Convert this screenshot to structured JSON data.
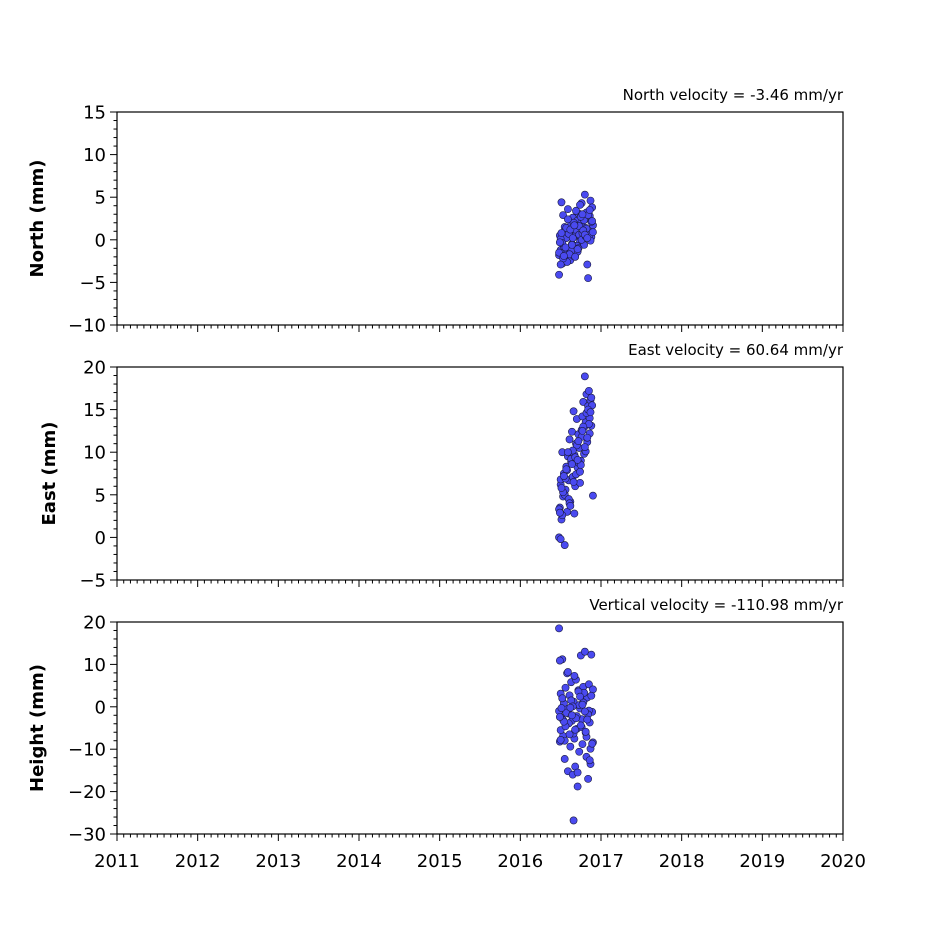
{
  "chart_data": [
    {
      "type": "scatter",
      "title": "North velocity = -3.46 mm/yr",
      "xlabel": "",
      "ylabel": "North (mm)",
      "xlim": [
        2011,
        2020
      ],
      "ylim": [
        -10,
        15
      ],
      "yticks": [
        "15",
        "10",
        "5",
        "0",
        "−10"
      ],
      "yticks_values": [
        15,
        10,
        5,
        0,
        -10
      ],
      "yticks_full": [
        "−10",
        "−5",
        "0",
        "5",
        "10",
        "15"
      ],
      "grid": false,
      "marker_color": "#4a4af0",
      "points": {
        "x": [
          2016.48,
          2016.49,
          2016.5,
          2016.51,
          2016.52,
          2016.53,
          2016.54,
          2016.55,
          2016.56,
          2016.57,
          2016.58,
          2016.59,
          2016.6,
          2016.61,
          2016.62,
          2016.63,
          2016.64,
          2016.65,
          2016.66,
          2016.67,
          2016.68,
          2016.69,
          2016.7,
          2016.71,
          2016.72,
          2016.73,
          2016.74,
          2016.75,
          2016.76,
          2016.77,
          2016.78,
          2016.79,
          2016.8,
          2016.81,
          2016.82,
          2016.83,
          2016.84,
          2016.85,
          2016.86,
          2016.87,
          2016.88,
          2016.89,
          2016.9,
          2016.48,
          2016.5,
          2016.52,
          2016.55,
          2016.58,
          2016.6,
          2016.63,
          2016.66,
          2016.7,
          2016.73,
          2016.76,
          2016.79,
          2016.82,
          2016.85,
          2016.88,
          2016.49,
          2016.53,
          2016.57,
          2016.61,
          2016.65,
          2016.69,
          2016.72,
          2016.75,
          2016.78,
          2016.81,
          2016.84,
          2016.87,
          2016.9,
          2016.5,
          2016.56,
          2016.62,
          2016.68,
          2016.74,
          2016.8,
          2016.86,
          2016.48,
          2016.51,
          2016.54,
          2016.59,
          2016.64,
          2016.67,
          2016.71,
          2016.77,
          2016.83,
          2016.89
        ],
        "y": [
          -4.1,
          0.5,
          -1.2,
          4.4,
          -2.8,
          2.9,
          -0.8,
          1.5,
          -2.1,
          0.2,
          -1.6,
          3.6,
          -1.1,
          0.9,
          -2.4,
          1.8,
          -0.5,
          2.6,
          -1.9,
          0.4,
          1.2,
          -0.9,
          2.2,
          -1.4,
          3.1,
          0.6,
          -0.2,
          1.9,
          4.3,
          0.8,
          2.5,
          -0.6,
          5.3,
          1.4,
          3.2,
          -2.9,
          -4.5,
          1.1,
          2.8,
          4.6,
          0.3,
          3.8,
          1.7,
          -1.8,
          0.1,
          -0.4,
          1.0,
          -2.6,
          0.7,
          -1.3,
          2.0,
          -0.7,
          1.6,
          0.0,
          2.3,
          1.3,
          0.5,
          2.1,
          -0.3,
          -2.2,
          1.4,
          -1.7,
          0.2,
          3.4,
          -1.0,
          2.7,
          1.1,
          0.4,
          2.9,
          -0.1,
          0.9,
          -2.9,
          -0.9,
          1.2,
          -2.0,
          4.1,
          0.6,
          3.5,
          -1.5,
          0.8,
          -1.9,
          2.4,
          -0.6,
          1.7,
          -1.1,
          3.0,
          0.2,
          2.2
        ]
      }
    },
    {
      "type": "scatter",
      "title": "East velocity = 60.64 mm/yr",
      "xlabel": "",
      "ylabel": "East (mm)",
      "xlim": [
        2011,
        2020
      ],
      "ylim": [
        -5,
        20
      ],
      "yticks_full": [
        "−5",
        "0",
        "5",
        "10",
        "15",
        "20"
      ],
      "yticks_values": [
        -5,
        0,
        5,
        10,
        15,
        20
      ],
      "grid": false,
      "marker_color": "#4a4af0",
      "points": {
        "x": [
          2016.48,
          2016.49,
          2016.5,
          2016.51,
          2016.52,
          2016.53,
          2016.54,
          2016.55,
          2016.56,
          2016.57,
          2016.58,
          2016.59,
          2016.6,
          2016.61,
          2016.62,
          2016.63,
          2016.64,
          2016.65,
          2016.66,
          2016.67,
          2016.68,
          2016.69,
          2016.7,
          2016.71,
          2016.72,
          2016.73,
          2016.74,
          2016.75,
          2016.76,
          2016.77,
          2016.78,
          2016.79,
          2016.8,
          2016.81,
          2016.82,
          2016.83,
          2016.84,
          2016.85,
          2016.86,
          2016.87,
          2016.88,
          2016.89,
          2016.9,
          2016.48,
          2016.5,
          2016.52,
          2016.55,
          2016.58,
          2016.6,
          2016.63,
          2016.66,
          2016.7,
          2016.73,
          2016.76,
          2016.79,
          2016.82,
          2016.85,
          2016.88,
          2016.49,
          2016.53,
          2016.57,
          2016.61,
          2016.65,
          2016.69,
          2016.72,
          2016.75,
          2016.78,
          2016.81,
          2016.84,
          2016.87,
          2016.5,
          2016.56,
          2016.62,
          2016.68,
          2016.74,
          2016.8,
          2016.86,
          2016.51,
          2016.54,
          2016.59,
          2016.64,
          2016.67,
          2016.71,
          2016.77,
          2016.83
        ],
        "y": [
          0.0,
          3.5,
          6.2,
          2.1,
          10.0,
          4.8,
          7.5,
          -0.9,
          5.6,
          8.3,
          3.0,
          9.5,
          6.7,
          11.5,
          4.2,
          8.9,
          12.4,
          7.1,
          14.8,
          9.7,
          6.0,
          11.0,
          13.9,
          8.2,
          12.1,
          10.5,
          6.4,
          9.0,
          11.8,
          14.2,
          15.9,
          12.9,
          18.9,
          13.5,
          16.8,
          11.2,
          15.4,
          17.2,
          14.0,
          16.1,
          13.1,
          15.5,
          4.9,
          3.3,
          6.8,
          2.6,
          5.0,
          7.9,
          4.5,
          9.2,
          6.5,
          10.8,
          8.7,
          12.6,
          9.8,
          14.6,
          13.3,
          16.4,
          2.9,
          5.3,
          8.0,
          4.0,
          10.2,
          7.4,
          11.3,
          8.5,
          13.0,
          10.1,
          15.0,
          14.7,
          -0.2,
          6.9,
          3.7,
          9.4,
          7.7,
          10.6,
          12.2,
          5.8,
          7.2,
          10.0,
          8.6,
          2.8,
          9.1,
          12.5,
          11.7
        ]
      }
    },
    {
      "type": "scatter",
      "title": "Vertical velocity = -110.98 mm/yr",
      "xlabel": "",
      "ylabel": "Height (mm)",
      "xlim": [
        2011,
        2020
      ],
      "ylim": [
        -30,
        20
      ],
      "xticks_full": [
        "2011",
        "2012",
        "2013",
        "2014",
        "2015",
        "2016",
        "2017",
        "2018",
        "2019",
        "2020"
      ],
      "yticks_full": [
        "−30",
        "−20",
        "−10",
        "0",
        "10",
        "20"
      ],
      "yticks_values": [
        -30,
        -20,
        -10,
        0,
        10,
        20
      ],
      "grid": false,
      "marker_color": "#4a4af0",
      "points": {
        "x": [
          2016.48,
          2016.49,
          2016.5,
          2016.51,
          2016.52,
          2016.53,
          2016.54,
          2016.55,
          2016.56,
          2016.57,
          2016.58,
          2016.59,
          2016.6,
          2016.61,
          2016.62,
          2016.63,
          2016.64,
          2016.65,
          2016.66,
          2016.67,
          2016.68,
          2016.69,
          2016.7,
          2016.71,
          2016.72,
          2016.73,
          2016.74,
          2016.75,
          2016.76,
          2016.77,
          2016.78,
          2016.79,
          2016.8,
          2016.81,
          2016.82,
          2016.83,
          2016.84,
          2016.85,
          2016.86,
          2016.87,
          2016.88,
          2016.89,
          2016.9,
          2016.48,
          2016.5,
          2016.52,
          2016.55,
          2016.58,
          2016.6,
          2016.63,
          2016.66,
          2016.7,
          2016.73,
          2016.76,
          2016.79,
          2016.82,
          2016.85,
          2016.88,
          2016.49,
          2016.53,
          2016.57,
          2016.61,
          2016.65,
          2016.69,
          2016.72,
          2016.75,
          2016.78,
          2016.81,
          2016.84,
          2016.87,
          2016.9,
          2016.5,
          2016.56,
          2016.62,
          2016.68,
          2016.74,
          2016.8,
          2016.86,
          2016.51,
          2016.54,
          2016.59,
          2016.64,
          2016.67,
          2016.71,
          2016.77,
          2016.83,
          2016.89,
          2016.66,
          2016.49
        ],
        "y": [
          18.5,
          -8.2,
          3.1,
          -2.5,
          11.2,
          -6.9,
          0.8,
          -12.3,
          4.5,
          -4.1,
          7.9,
          -15.2,
          -1.6,
          2.7,
          -9.4,
          5.8,
          -3.3,
          -16.0,
          1.2,
          -7.5,
          -14.1,
          6.4,
          -5.2,
          -18.8,
          3.9,
          -10.6,
          -0.4,
          12.1,
          -2.9,
          -8.8,
          4.7,
          1.6,
          13.0,
          -6.1,
          -11.8,
          2.2,
          -17.0,
          5.3,
          -3.7,
          -9.9,
          12.3,
          -1.2,
          4.1,
          -1.0,
          -5.5,
          2.0,
          -8.0,
          -0.6,
          -3.9,
          1.5,
          -6.3,
          -2.2,
          0.4,
          -4.8,
          3.3,
          -7.1,
          -0.9,
          2.6,
          10.9,
          -3.1,
          -1.4,
          -6.5,
          0.1,
          -2.7,
          3.6,
          -4.4,
          1.0,
          -5.9,
          -1.8,
          -13.5,
          -8.4,
          -7.8,
          -4.6,
          -0.2,
          -5.4,
          2.4,
          -1.1,
          -12.6,
          -0.3,
          -3.5,
          8.2,
          -2.0,
          7.3,
          -15.5,
          0.5,
          -3.0,
          -8.7,
          -26.8,
          -2.4
        ]
      }
    }
  ],
  "shared_xticks": [
    "2011",
    "2012",
    "2013",
    "2014",
    "2015",
    "2016",
    "2017",
    "2018",
    "2019",
    "2020"
  ]
}
